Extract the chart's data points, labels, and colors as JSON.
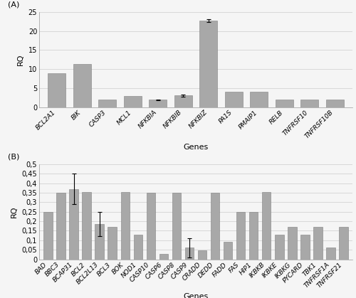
{
  "panel_A": {
    "categories": [
      "BCL2A1",
      "BIK",
      "CASP3",
      "MCL1",
      "NFKBIA",
      "NFKBIB",
      "NFKBIZ",
      "PA1S",
      "PMAIP1",
      "RELB",
      "TNFRSF10",
      "TNFRSF10B"
    ],
    "values": [
      8.8,
      11.3,
      2.0,
      2.9,
      1.9,
      3.0,
      22.7,
      4.1,
      4.1,
      2.0,
      2.0,
      2.0
    ],
    "errors": [
      0.0,
      0.0,
      0.0,
      0.0,
      0.15,
      0.25,
      0.3,
      0.0,
      0.0,
      0.0,
      0.0,
      0.0
    ],
    "ylabel": "RQ",
    "xlabel": "Genes",
    "ylim": [
      0,
      25
    ],
    "yticks": [
      0,
      5,
      10,
      15,
      20,
      25
    ],
    "ytick_labels": [
      "0",
      "5",
      "10",
      "15",
      "20",
      "25"
    ],
    "label": "(A)"
  },
  "panel_B": {
    "categories": [
      "BAD",
      "BBC3",
      "BCAP31",
      "BCL2",
      "BCL2L13",
      "BCL3",
      "BOK",
      "NOD1",
      "CASP10",
      "CASP6",
      "CASP8",
      "CASP9",
      "CRADD",
      "DEDD",
      "FADD",
      "FAS",
      "HIP1",
      "IKBKB",
      "IKBKE",
      "IKBKG",
      "PYCARD",
      "TBK1",
      "TNFRSF1A",
      "TNFRSF21"
    ],
    "values": [
      0.25,
      0.35,
      0.37,
      0.355,
      0.185,
      0.17,
      0.355,
      0.13,
      0.35,
      0.03,
      0.35,
      0.06,
      0.045,
      0.35,
      0.09,
      0.25,
      0.25,
      0.355,
      0.13,
      0.17,
      0.13,
      0.17,
      0.06,
      0.17
    ],
    "errors": [
      0.0,
      0.0,
      0.08,
      0.0,
      0.065,
      0.0,
      0.0,
      0.0,
      0.0,
      0.0,
      0.0,
      0.05,
      0.0,
      0.0,
      0.0,
      0.0,
      0.0,
      0.0,
      0.0,
      0.0,
      0.0,
      0.0,
      0.0,
      0.0
    ],
    "ylabel": "RQ",
    "xlabel": "Genes",
    "ylim": [
      0,
      0.5
    ],
    "yticks": [
      0,
      0.05,
      0.1,
      0.15,
      0.2,
      0.25,
      0.3,
      0.35,
      0.4,
      0.45,
      0.5
    ],
    "ytick_labels": [
      "0",
      "0,05",
      "0,1",
      "0,15",
      "0,2",
      "0,25",
      "0,3",
      "0,35",
      "0,4",
      "0,45",
      "0,5"
    ],
    "label": "(B)"
  },
  "bar_color": "#a8a8a8",
  "bar_edge_color": "#808080",
  "error_color": "#000000",
  "background_color": "#f5f5f5",
  "grid_color": "#cccccc",
  "font_size": 6.5,
  "label_font_size": 8,
  "tick_font_size": 7
}
